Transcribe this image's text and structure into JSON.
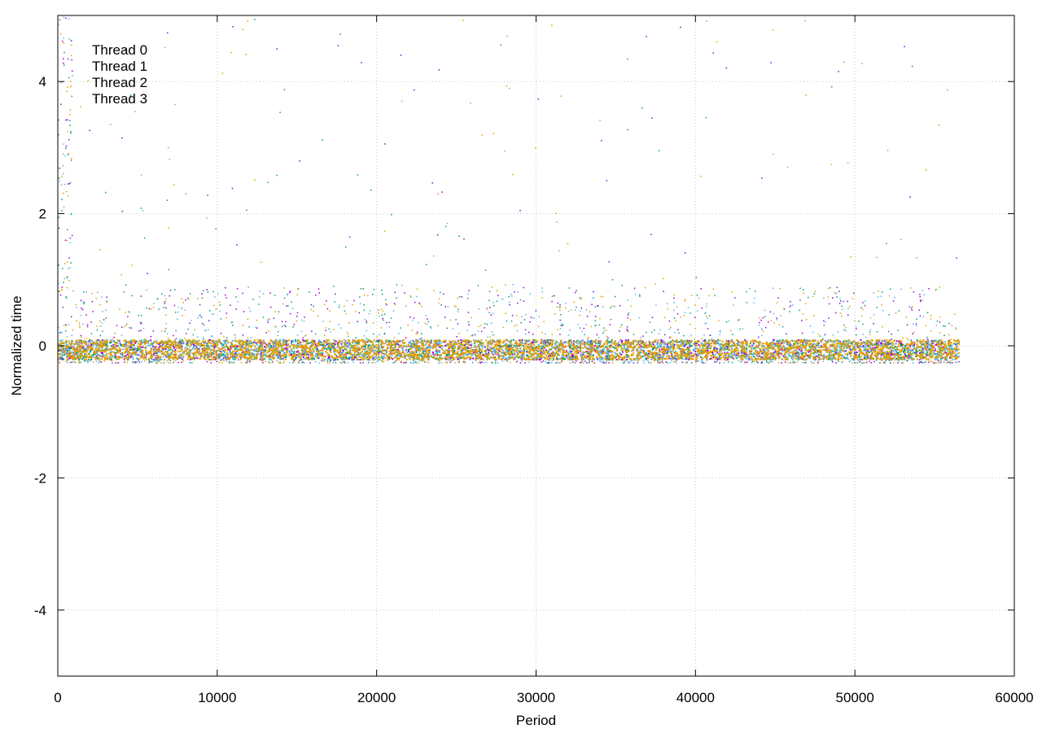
{
  "chart_data": {
    "type": "scatter",
    "title": "",
    "xlabel": "Period",
    "ylabel": "Normalized time",
    "xlim": [
      0,
      60000
    ],
    "ylim": [
      -5,
      5
    ],
    "xticks": [
      0,
      10000,
      20000,
      30000,
      40000,
      50000,
      60000
    ],
    "yticks": [
      -4,
      -2,
      0,
      2,
      4
    ],
    "xtick_labels": [
      "0",
      "10000",
      "20000",
      "30000",
      "40000",
      "50000",
      "60000"
    ],
    "ytick_labels": [
      "-4",
      "-2",
      "0",
      "2",
      "4"
    ],
    "grid": true,
    "legend_position": "top-left",
    "x_max_data": 56500,
    "series": [
      {
        "name": "Thread 0",
        "color": "#9400d3"
      },
      {
        "name": "Thread 1",
        "color": "#009e73"
      },
      {
        "name": "Thread 2",
        "color": "#56b4e9"
      },
      {
        "name": "Thread 3",
        "color": "#e69f00"
      }
    ],
    "core_band": {
      "y_low": -0.25,
      "y_high": 0.3,
      "dense_low": -0.2,
      "dense_high": 0.1
    },
    "outlier_range": {
      "y_low": 0.5,
      "y_high": 5
    }
  }
}
